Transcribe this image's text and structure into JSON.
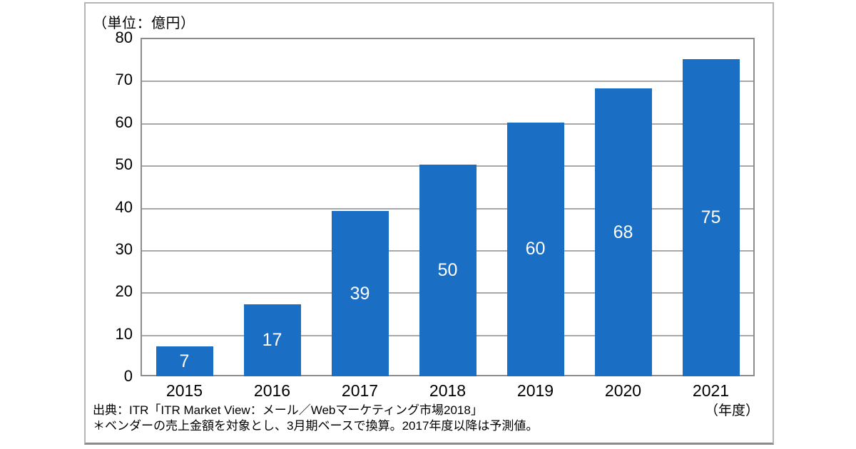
{
  "chart_data": {
    "type": "bar",
    "unit_label": "（単位：億円）",
    "x_axis_unit_label": "（年度）",
    "categories": [
      "2015",
      "2016",
      "2017",
      "2018",
      "2019",
      "2020",
      "2021"
    ],
    "values": [
      7,
      17,
      39,
      50,
      60,
      68,
      75
    ],
    "bar_labels": [
      "7",
      "17",
      "39",
      "50",
      "60",
      "68",
      "75"
    ],
    "ylim": [
      0,
      80
    ],
    "yticks": [
      0,
      10,
      20,
      30,
      40,
      50,
      60,
      70,
      80
    ],
    "grid": true,
    "legend": "none",
    "bar_color": "#1a6fc4",
    "bar_label_color": "#ffffff",
    "grid_color": "#a8a8a8"
  },
  "footer": {
    "source_line": "出典：ITR「ITR Market View：メール／Webマーケティング市場2018」",
    "note_line": "＊ベンダーの売上金額を対象とし、3月期ベースで換算。2017年度以降は予測値。"
  }
}
